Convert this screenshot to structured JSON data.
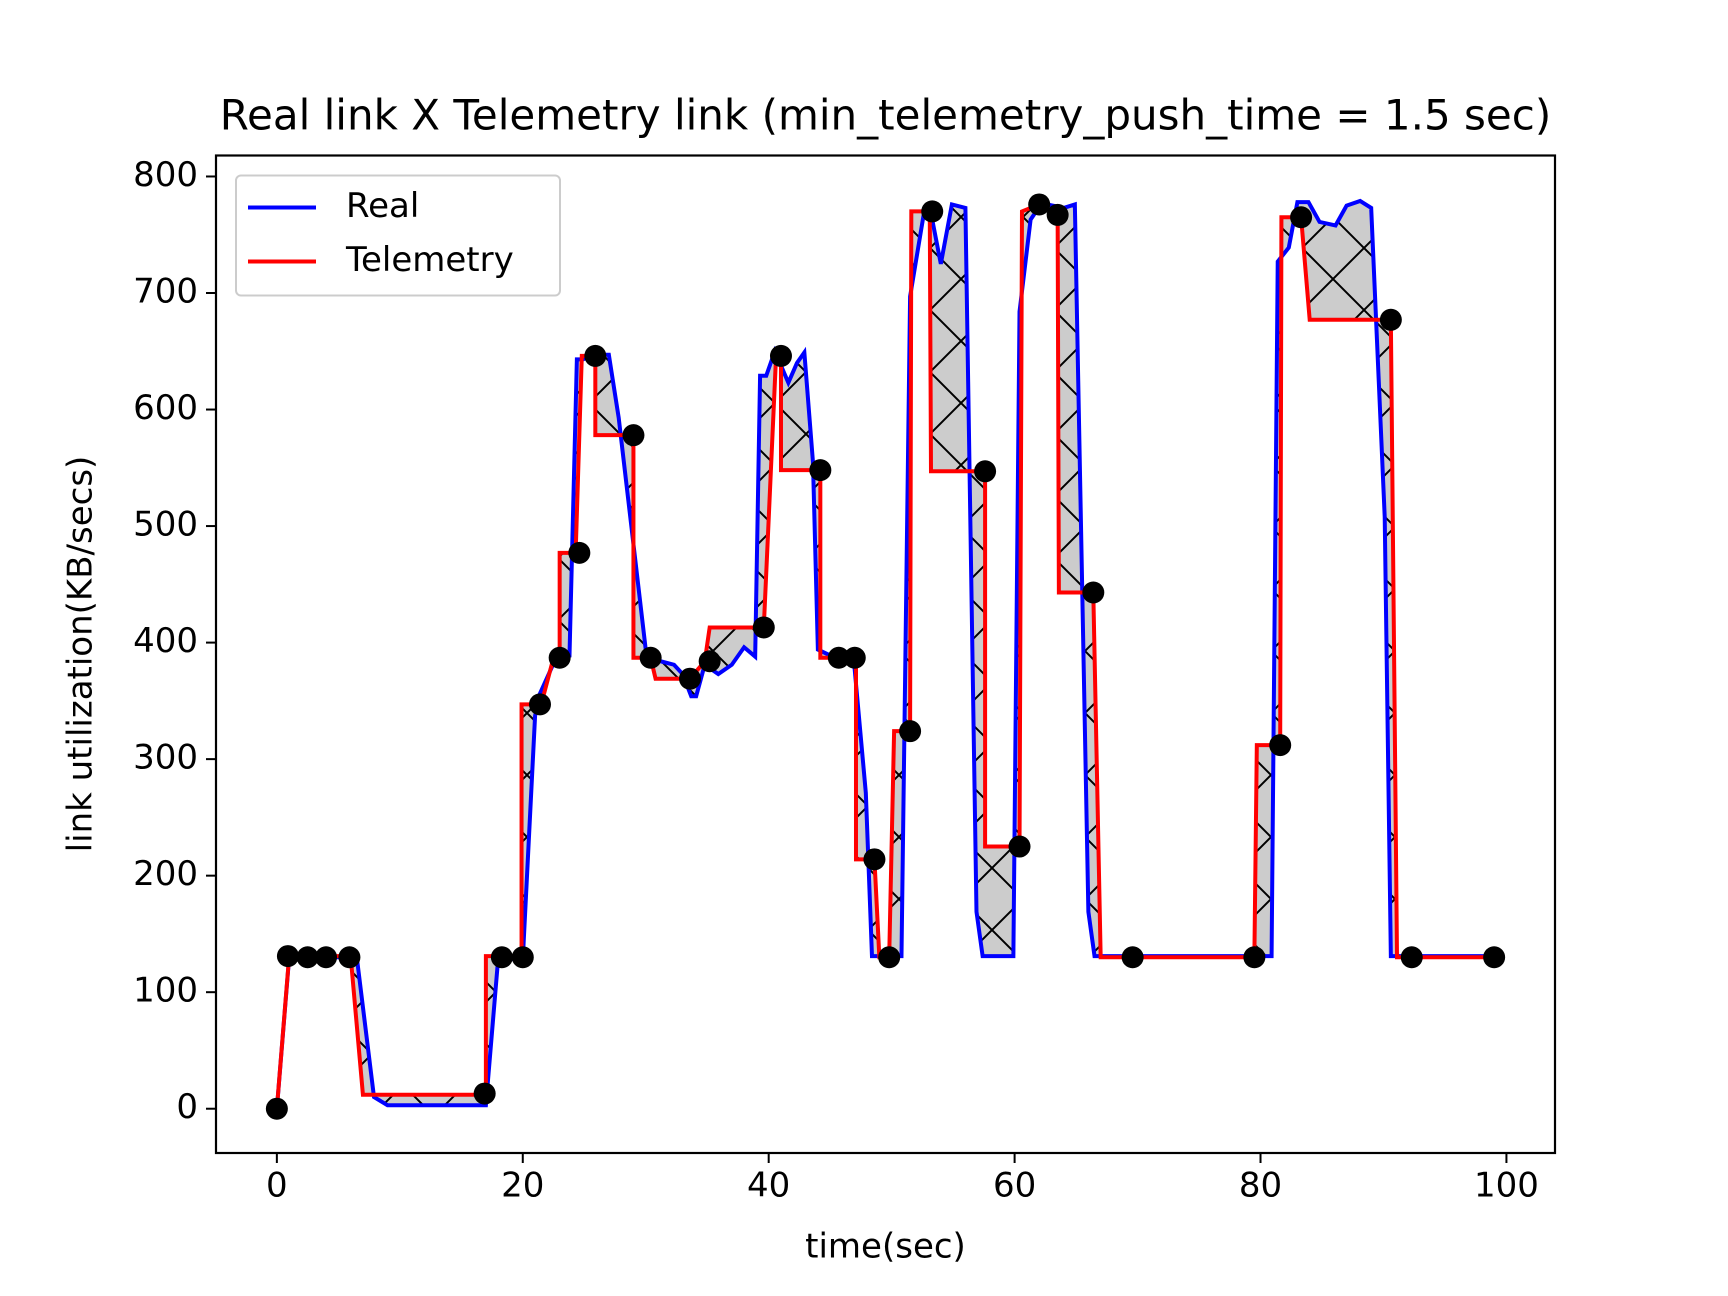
{
  "chart_data": {
    "type": "line",
    "title": "Real link X Telemetry link (min_telemetry_push_time = 1.5 sec)",
    "x_label": "time(sec)",
    "y_label": "link utilization(KB/secs)",
    "xlim": [
      -4.95,
      103.95
    ],
    "ylim": [
      -38,
      818
    ],
    "xticks": [
      0,
      20,
      40,
      60,
      80,
      100
    ],
    "yticks": [
      0,
      100,
      200,
      300,
      400,
      500,
      600,
      700,
      800
    ],
    "legend": "upper left",
    "fill_between": {
      "color": "#cccccc",
      "hatch": "x"
    },
    "series": [
      {
        "name": "Real",
        "color": "#0000ff",
        "x": [
          0,
          1,
          6.5,
          7.9,
          9,
          17,
          18,
          20,
          21,
          21.3,
          22.2,
          22.8,
          23.8,
          24.4,
          24.9,
          25.7,
          27,
          27.8,
          30,
          31.2,
          32.3,
          33,
          33.7,
          34.1,
          34.8,
          35.9,
          37,
          38,
          38.9,
          39.3,
          39.8,
          40.5,
          41.6,
          42.3,
          42.9,
          43.6,
          44,
          45.2,
          46.9,
          47.9,
          48.4,
          50.8,
          51.5,
          52.6,
          53.3,
          54,
          54.9,
          56,
          56.9,
          57.4,
          59.9,
          60.4,
          61.3,
          62.2,
          64,
          64.9,
          66,
          66.5,
          80.9,
          81.4,
          82.3,
          83,
          83.9,
          84.8,
          86.1,
          87,
          88.1,
          89,
          90.1,
          90.6,
          99
        ],
        "values": [
          0,
          130,
          130,
          10,
          3,
          3,
          129,
          128,
          337,
          354,
          375,
          389,
          389,
          643,
          643,
          647,
          647,
          593,
          394,
          384,
          381,
          373,
          354,
          354,
          381,
          373,
          381,
          396,
          388,
          629,
          629,
          650,
          623,
          640,
          649,
          555,
          394,
          388,
          388,
          271,
          131,
          131,
          697,
          767,
          763,
          725,
          776,
          773,
          169,
          131,
          131,
          684,
          763,
          777,
          773,
          776,
          169,
          131,
          131,
          727,
          739,
          778,
          778,
          761,
          758,
          775,
          779,
          773,
          508,
          131,
          131
        ]
      },
      {
        "name": "Telemetry",
        "color": "#ff0000",
        "x": [
          0,
          1,
          6,
          7,
          17,
          17,
          19.9,
          19.9,
          21.5,
          22.5,
          23,
          23,
          24.3,
          24.8,
          25.9,
          25.9,
          29,
          29,
          30.4,
          30.8,
          33.6,
          34.8,
          35.2,
          39.6,
          40.6,
          41,
          41,
          44.2,
          44.2,
          47.1,
          47.1,
          48.6,
          49,
          49.8,
          50.2,
          51.5,
          51.6,
          53.1,
          53.2,
          57.6,
          57.6,
          60.4,
          60.6,
          62,
          63.5,
          63.6,
          66.4,
          67,
          79.5,
          79.7,
          81.6,
          81.7,
          83.3,
          84,
          90.6,
          91.1,
          99
        ],
        "values": [
          0,
          131,
          131,
          12,
          12,
          131,
          131,
          347,
          347,
          387,
          387,
          477,
          477,
          646,
          646,
          578,
          578,
          387,
          387,
          369,
          369,
          384,
          413,
          413,
          646,
          646,
          548,
          548,
          387,
          387,
          214,
          214,
          130,
          130,
          324,
          324,
          770,
          770,
          547,
          547,
          225,
          225,
          770,
          776,
          767,
          443,
          443,
          130,
          130,
          312,
          312,
          765,
          765,
          677,
          677,
          130,
          130
        ]
      }
    ],
    "markers": {
      "color": "#000000",
      "x": [
        0,
        0.9,
        2.5,
        4,
        5.9,
        16.9,
        18.3,
        20,
        21.4,
        23,
        24.6,
        25.9,
        29,
        30.4,
        33.6,
        35.2,
        39.6,
        41,
        44.2,
        45.7,
        47,
        48.6,
        49.8,
        51.5,
        53.3,
        57.6,
        60.4,
        62,
        63.5,
        66.4,
        69.6,
        79.5,
        81.6,
        83.3,
        90.6,
        92.3,
        99
      ],
      "values": [
        0,
        131,
        130,
        130,
        130,
        13,
        130,
        130,
        347,
        387,
        477,
        646,
        578,
        387,
        369,
        384,
        413,
        646,
        548,
        387,
        387,
        214,
        130,
        324,
        770,
        547,
        225,
        776,
        767,
        443,
        130,
        130,
        312,
        765,
        677,
        130,
        130
      ]
    }
  }
}
